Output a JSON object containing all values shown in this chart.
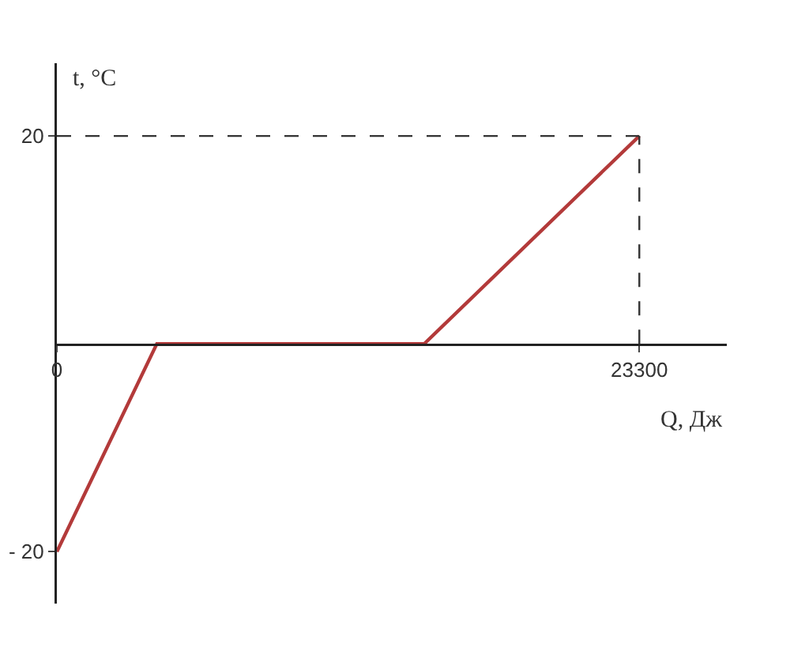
{
  "chart_data": {
    "type": "line",
    "xlabel": "Q, Дж",
    "ylabel": "t, °C",
    "x": [
      0,
      4000,
      14700,
      23300
    ],
    "series": [
      {
        "color": "#b33a3a",
        "values": [
          -20,
          0,
          0,
          20
        ]
      }
    ],
    "xlim": [
      0,
      26800
    ],
    "xticks": [
      0,
      23300
    ],
    "ylim": [
      -25,
      27
    ],
    "yticks": [
      20,
      {
        "value": -20,
        "label": "- 20"
      }
    ],
    "ref_lines": [
      {
        "axis": "x",
        "value": 23300,
        "line_style": "dashed",
        "color": "#333333"
      },
      {
        "axis": "y",
        "value": 20,
        "line_style": "dashed",
        "color": "#333333"
      }
    ],
    "grid": false,
    "marker": "none",
    "line_style": "solid"
  }
}
